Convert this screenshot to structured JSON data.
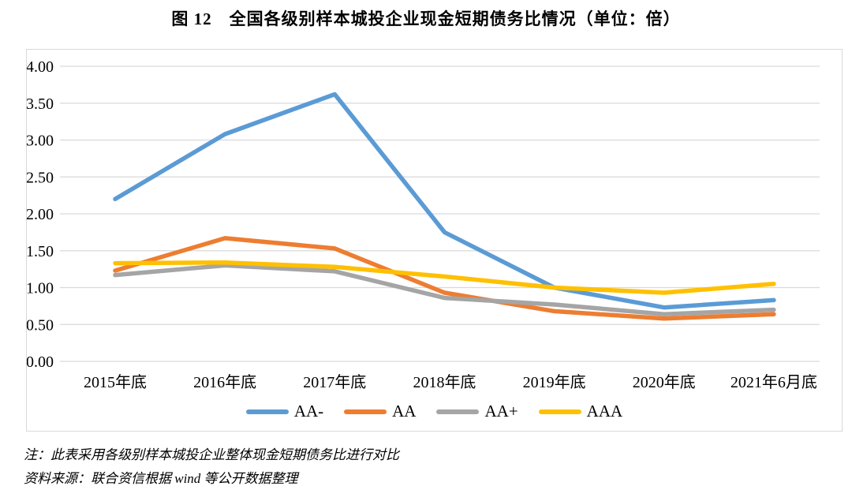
{
  "title": "图 12　全国各级别样本城投企业现金短期债务比情况（单位：倍）",
  "chart_data": {
    "type": "line",
    "categories": [
      "2015年底",
      "2016年底",
      "2017年底",
      "2018年底",
      "2019年底",
      "2020年底",
      "2021年6月底"
    ],
    "series": [
      {
        "name": "AA-",
        "key": "aa-minus",
        "color": "#5B9BD5",
        "values": [
          2.2,
          3.08,
          3.62,
          1.75,
          1.0,
          0.73,
          0.83
        ]
      },
      {
        "name": "AA",
        "key": "aa",
        "color": "#ED7D31",
        "values": [
          1.23,
          1.67,
          1.53,
          0.93,
          0.68,
          0.58,
          0.64
        ]
      },
      {
        "name": "AA+",
        "key": "aa-plus",
        "color": "#A5A5A5",
        "values": [
          1.17,
          1.3,
          1.22,
          0.86,
          0.77,
          0.64,
          0.7
        ]
      },
      {
        "name": "AAA",
        "key": "aaa",
        "color": "#FFC000",
        "values": [
          1.33,
          1.34,
          1.28,
          1.15,
          1.0,
          0.93,
          1.05
        ]
      }
    ],
    "ylim": [
      0,
      4
    ],
    "ytick_step": 0.5,
    "ytick_labels": [
      "0.00",
      "0.50",
      "1.00",
      "1.50",
      "2.00",
      "2.50",
      "3.00",
      "3.50",
      "4.00"
    ],
    "grid": true,
    "legend_position": "bottom",
    "unit": "倍"
  },
  "notes": {
    "note1": "注：此表采用各级别样本城投企业整体现金短期债务比进行对比",
    "note2": "资料来源：联合资信根据 wind 等公开数据整理"
  },
  "colors": {
    "grid": "#D9D9D9",
    "chart_border": "#D9D9D9",
    "text": "#000000"
  }
}
